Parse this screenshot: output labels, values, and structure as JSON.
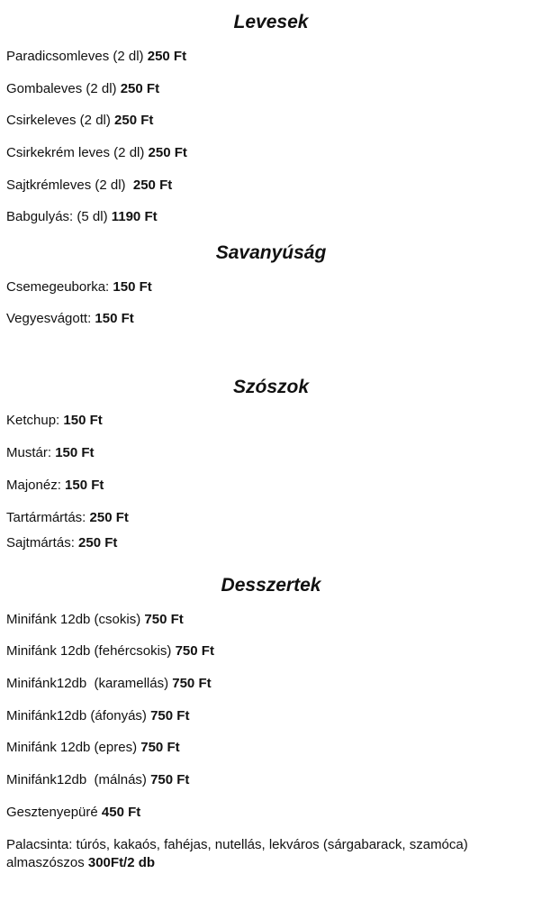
{
  "sections": [
    {
      "title": "Levesek",
      "items": [
        {
          "name": "Paradicsomleves (2 dl) ",
          "price": "250 Ft"
        },
        {
          "name": "Gombaleves (2 dl) ",
          "price": "250 Ft"
        },
        {
          "name": "Csirkeleves (2 dl) ",
          "price": "250 Ft"
        },
        {
          "name": "Csirkekrém leves (2 dl) ",
          "price": "250 Ft"
        },
        {
          "name": "Sajtkrémleves (2 dl)  ",
          "price": "250 Ft"
        },
        {
          "name": "Babgulyás: (5 dl) ",
          "price": "1190 Ft"
        }
      ]
    },
    {
      "title": "Savanyúság",
      "items": [
        {
          "name": "Csemegeuborka: ",
          "price": "150 Ft"
        },
        {
          "name": "Vegyesvágott: ",
          "price": "150 Ft"
        }
      ]
    },
    {
      "title": "Szószok",
      "items": [
        {
          "name": "Ketchup: ",
          "price": "150 Ft"
        },
        {
          "name": "Mustár: ",
          "price": "150 Ft"
        },
        {
          "name": "Majonéz: ",
          "price": "150 Ft"
        },
        {
          "name": "Tartármártás: ",
          "price": "250 Ft"
        },
        {
          "name": "Sajtmártás: ",
          "price": "250 Ft"
        }
      ]
    },
    {
      "title": "Desszertek",
      "items": [
        {
          "name": "Minifánk 12db (csokis) ",
          "price": "750 Ft"
        },
        {
          "name": "Minifánk 12db (fehércsokis) ",
          "price": "750 Ft"
        },
        {
          "name": "Minifánk12db  (karamellás) ",
          "price": "750 Ft"
        },
        {
          "name": "Minifánk12db (áfonyás) ",
          "price": "750 Ft"
        },
        {
          "name": "Minifánk 12db (epres) ",
          "price": "750 Ft"
        },
        {
          "name": "Minifánk12db  (málnás) ",
          "price": "750 Ft"
        },
        {
          "name": "Gesztenyepüré ",
          "price": "450 Ft"
        },
        {
          "name": "Palacsinta: túrós, kakaós, fahéjas, nutellás, lekváros (sárgabarack, szamóca)\nalmaszószos ",
          "price": "300Ft/2 db"
        }
      ]
    }
  ]
}
